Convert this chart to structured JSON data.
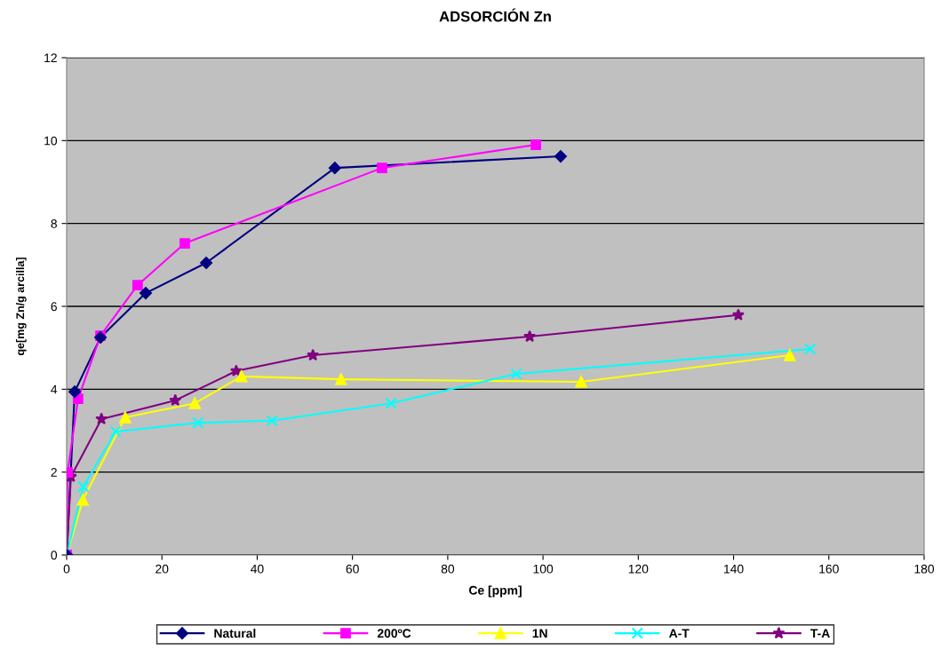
{
  "chart_data": {
    "type": "line",
    "title": "ADSORCIÓN Zn",
    "xlabel": "Ce [ppm]",
    "ylabel": "qe[mg Zn/g arcilla]",
    "xlim": [
      0,
      180
    ],
    "xticks": [
      0,
      20,
      40,
      60,
      80,
      100,
      120,
      140,
      160,
      180
    ],
    "ylim": [
      0,
      12
    ],
    "yticks": [
      0,
      2,
      4,
      6,
      8,
      10,
      12
    ],
    "grid": "y",
    "legend": "bottom",
    "series": [
      {
        "name": "Natural",
        "color": "#000080",
        "marker": "diamond",
        "x": [
          0,
          1.7,
          7.1,
          16.6,
          29.3,
          56.3,
          103.7
        ],
        "values": [
          0,
          3.94,
          5.25,
          6.32,
          7.05,
          9.34,
          9.62
        ]
      },
      {
        "name": "200ºC",
        "color": "#ff00ff",
        "marker": "square",
        "x": [
          0,
          0.2,
          2.4,
          7.1,
          14.9,
          24.8,
          66.2,
          98.5
        ],
        "values": [
          0,
          1.99,
          3.77,
          5.29,
          6.51,
          7.52,
          9.34,
          9.9
        ]
      },
      {
        "name": "1N",
        "color": "#ffff00",
        "marker": "triangle",
        "x": [
          0,
          3.4,
          12.3,
          26.9,
          36.7,
          57.6,
          108,
          151.8
        ],
        "values": [
          0,
          1.33,
          3.32,
          3.66,
          4.31,
          4.24,
          4.18,
          4.82
        ]
      },
      {
        "name": "A-T",
        "color": "#00ffff",
        "marker": "cross",
        "x": [
          0,
          3.5,
          10.3,
          27.6,
          43.1,
          68.1,
          94.4,
          156.1
        ],
        "values": [
          0,
          1.65,
          2.98,
          3.19,
          3.24,
          3.66,
          4.37,
          4.97
        ]
      },
      {
        "name": "T-A",
        "color": "#800080",
        "marker": "star",
        "x": [
          0,
          0.9,
          7.3,
          22.8,
          35.6,
          51.7,
          97.2,
          141
        ],
        "values": [
          0,
          1.89,
          3.28,
          3.73,
          4.44,
          4.82,
          5.27,
          5.79
        ]
      }
    ]
  }
}
